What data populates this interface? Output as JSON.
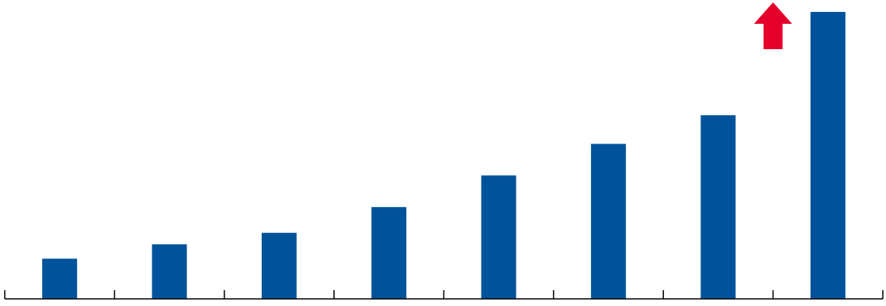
{
  "chart_data": {
    "type": "bar",
    "categories": [
      "",
      "",
      "",
      "",
      "",
      "",
      "",
      ""
    ],
    "values": [
      14,
      19,
      23,
      32,
      43,
      54,
      64,
      100
    ],
    "ylim": [
      0,
      100
    ],
    "grid": false,
    "legend": "none",
    "colors": {
      "bar": "#00539b",
      "axis": "#000000",
      "arrow": "#e4002b"
    },
    "annotations": [
      {
        "type": "up-arrow",
        "icon": "up-arrow-icon",
        "category_index": 6.5
      }
    ]
  }
}
